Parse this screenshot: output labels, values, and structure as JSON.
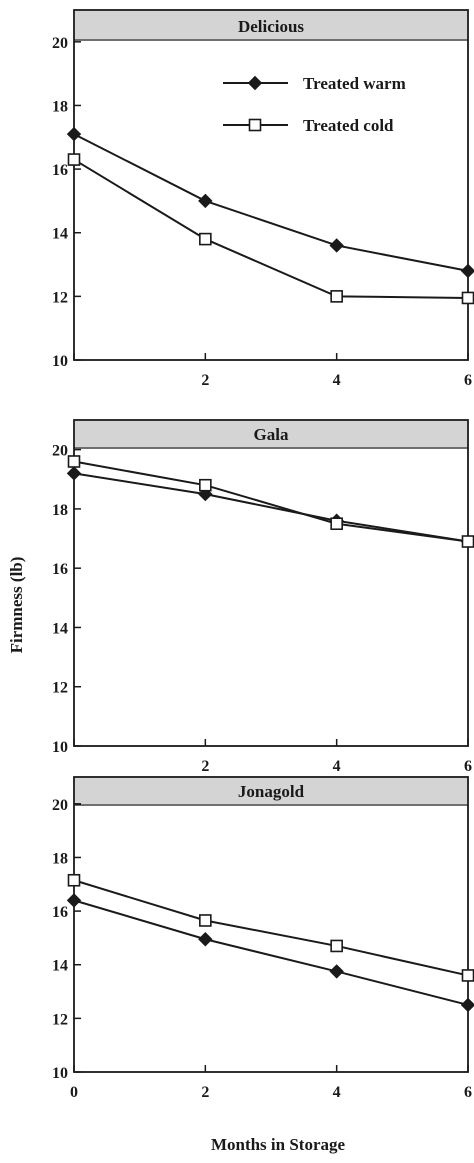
{
  "figure": {
    "ylabel": "Firmness (lb)",
    "xlabel": "Months in Storage",
    "legend": [
      {
        "label": "Treated warm",
        "marker": "filled-diamond"
      },
      {
        "label": "Treated cold",
        "marker": "open-square"
      }
    ],
    "colors": {
      "line": "#1a1a1a",
      "title_band": "#d4d4d4",
      "background": "#ffffff"
    }
  },
  "chart_data": [
    {
      "type": "line",
      "title": "Delicious",
      "x": [
        0,
        2,
        4,
        6
      ],
      "xticks": [
        "",
        "2",
        "4",
        "6"
      ],
      "yticks": [
        "10",
        "12",
        "14",
        "16",
        "18",
        "20"
      ],
      "ylim": [
        10,
        21
      ],
      "xlim": [
        0,
        6
      ],
      "legend_position": "top-right",
      "series": [
        {
          "name": "Treated warm",
          "marker": "filled-diamond",
          "values": [
            17.1,
            15.0,
            13.6,
            12.8
          ]
        },
        {
          "name": "Treated cold",
          "marker": "open-square",
          "values": [
            16.3,
            13.8,
            12.0,
            11.95
          ]
        }
      ]
    },
    {
      "type": "line",
      "title": "Gala",
      "x": [
        0,
        2,
        4,
        6
      ],
      "xticks": [
        "",
        "2",
        "4",
        "6"
      ],
      "yticks": [
        "10",
        "12",
        "14",
        "16",
        "18",
        "20"
      ],
      "ylim": [
        10,
        21
      ],
      "xlim": [
        0,
        6
      ],
      "series": [
        {
          "name": "Treated warm",
          "marker": "filled-diamond",
          "values": [
            19.2,
            18.5,
            17.6,
            16.9
          ]
        },
        {
          "name": "Treated cold",
          "marker": "open-square",
          "values": [
            19.6,
            18.8,
            17.5,
            16.9
          ]
        }
      ]
    },
    {
      "type": "line",
      "title": "Jonagold",
      "x": [
        0,
        2,
        4,
        6
      ],
      "xticks": [
        "0",
        "2",
        "4",
        "6"
      ],
      "yticks": [
        "10",
        "12",
        "14",
        "16",
        "18",
        "20"
      ],
      "ylim": [
        10,
        21
      ],
      "xlim": [
        0,
        6
      ],
      "series": [
        {
          "name": "Treated warm",
          "marker": "filled-diamond",
          "values": [
            16.4,
            14.95,
            13.75,
            12.5
          ]
        },
        {
          "name": "Treated cold",
          "marker": "open-square",
          "values": [
            17.15,
            15.65,
            14.7,
            13.6
          ]
        }
      ]
    }
  ]
}
